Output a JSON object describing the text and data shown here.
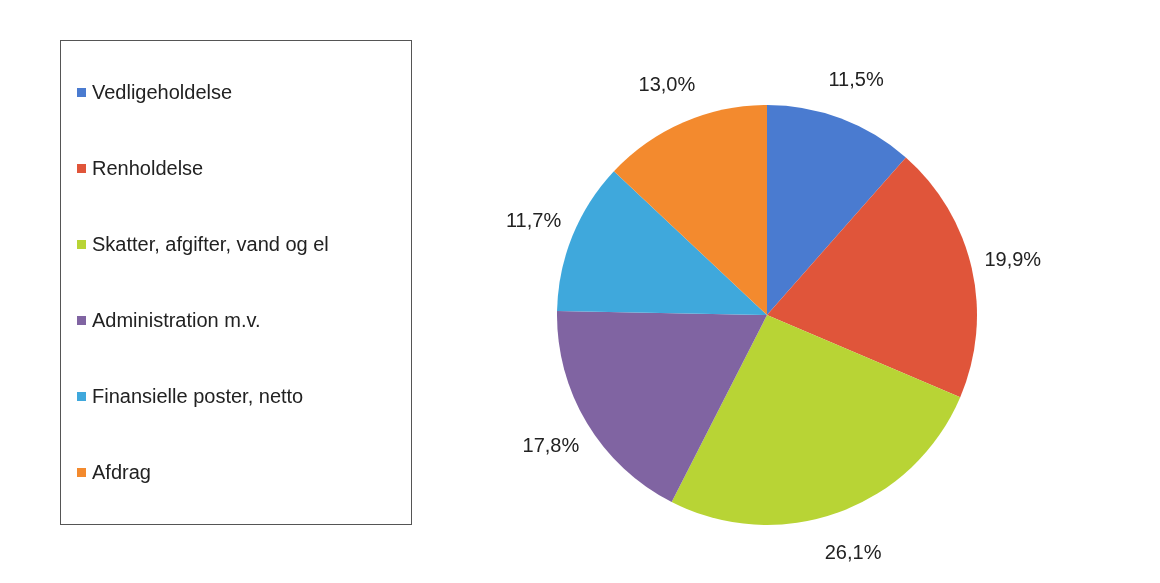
{
  "chart_data": {
    "type": "pie",
    "categories": [
      "Vedligeholdelse",
      "Renholdelse",
      "Skatter, afgifter, vand og el",
      "Administration m.v.",
      "Finansielle poster, netto",
      "Afdrag"
    ],
    "values": [
      11.5,
      19.9,
      26.1,
      17.8,
      11.7,
      13.0
    ],
    "colors": [
      "#4a7bd0",
      "#e0553a",
      "#b8d435",
      "#8064a2",
      "#3fa8dc",
      "#f38a2e"
    ],
    "value_labels": [
      "11,5%",
      "19,9%",
      "26,1%",
      "17,8%",
      "11,7%",
      "13,0%"
    ],
    "legend": "left"
  }
}
